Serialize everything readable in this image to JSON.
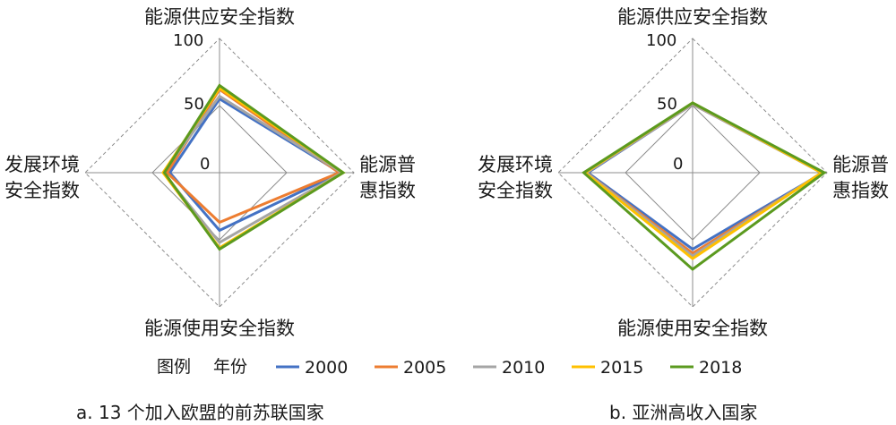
{
  "chart_data": [
    {
      "type": "radar",
      "caption": "a. 13 个加入欧盟的前苏联国家",
      "axes": [
        "能源供应安全指数",
        "能源普惠指数",
        "能源使用安全指数",
        "发展环境安全指数"
      ],
      "axis_label_lines": [
        [
          "能源供应安全指数"
        ],
        [
          "能源普",
          "惠指数"
        ],
        [
          "能源使用安全指数"
        ],
        [
          "发展环境",
          "安全指数"
        ]
      ],
      "r_range": [
        0,
        100
      ],
      "ticks": [
        "0",
        "50",
        "100"
      ],
      "series": [
        {
          "name": "2000",
          "values": [
            55,
            90,
            43,
            37
          ]
        },
        {
          "name": "2005",
          "values": [
            62,
            89,
            37,
            39
          ]
        },
        {
          "name": "2010",
          "values": [
            57,
            91,
            52,
            42
          ]
        },
        {
          "name": "2015",
          "values": [
            63,
            92,
            56,
            42
          ]
        },
        {
          "name": "2018",
          "values": [
            65,
            92,
            57,
            41
          ]
        }
      ]
    },
    {
      "type": "radar",
      "caption": "b. 亚洲高收入国家",
      "axes": [
        "能源供应安全指数",
        "能源普惠指数",
        "能源使用安全指数",
        "发展环境安全指数"
      ],
      "axis_label_lines": [
        [
          "能源供应安全指数"
        ],
        [
          "能源普",
          "惠指数"
        ],
        [
          "能源使用安全指数"
        ],
        [
          "发展环境",
          "安全指数"
        ]
      ],
      "r_range": [
        0,
        100
      ],
      "ticks": [
        "0",
        "50",
        "100"
      ],
      "series": [
        {
          "name": "2000",
          "values": [
            51,
            97,
            57,
            78
          ]
        },
        {
          "name": "2005",
          "values": [
            51,
            97,
            60,
            79
          ]
        },
        {
          "name": "2010",
          "values": [
            51,
            96,
            62,
            79
          ]
        },
        {
          "name": "2015",
          "values": [
            52,
            96,
            64,
            80
          ]
        },
        {
          "name": "2018",
          "values": [
            52,
            98,
            72,
            81
          ]
        }
      ]
    }
  ],
  "legend": {
    "title_1": "图例",
    "title_2": "年份",
    "items": [
      {
        "name": "2000",
        "color": "#4472c4"
      },
      {
        "name": "2005",
        "color": "#ed7d31"
      },
      {
        "name": "2010",
        "color": "#a5a5a5"
      },
      {
        "name": "2015",
        "color": "#ffc000"
      },
      {
        "name": "2018",
        "color": "#5b9a1f"
      }
    ]
  },
  "grid_color": "#8c8c8c"
}
